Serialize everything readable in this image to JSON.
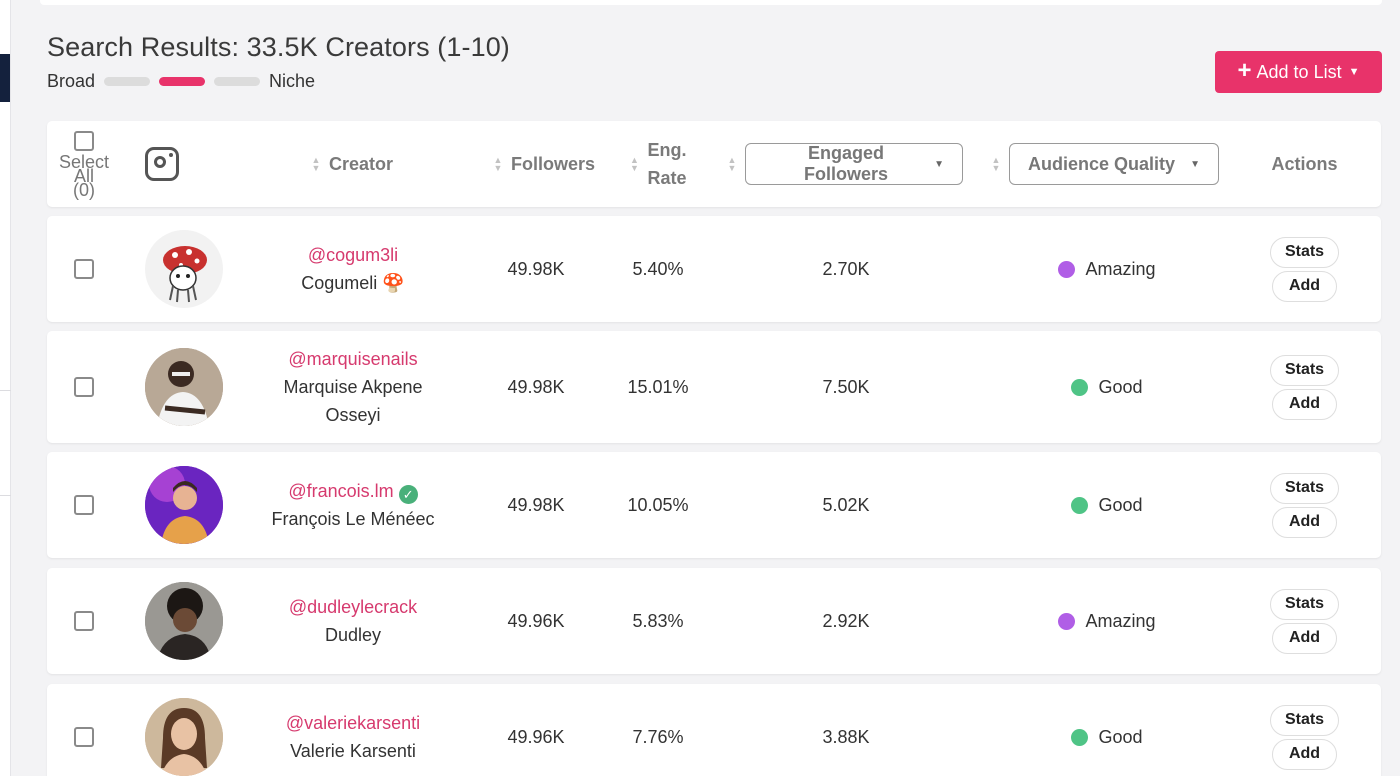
{
  "header": {
    "title": "Search Results: 33.5K Creators (1-10)",
    "scale_left": "Broad",
    "scale_right": "Niche",
    "add_to_list_label": "Add to List"
  },
  "table": {
    "select_all_label": "Select All",
    "select_all_count": "(0)",
    "columns": {
      "creator": "Creator",
      "followers": "Followers",
      "eng_rate_line1": "Eng.",
      "eng_rate_line2": "Rate",
      "engaged_followers": "Engaged Followers",
      "audience_quality": "Audience Quality",
      "actions": "Actions"
    },
    "rows": [
      {
        "handle": "@cogum3li",
        "name": "Cogumeli 🍄",
        "followers": "49.98K",
        "eng_rate": "5.40%",
        "engaged": "2.70K",
        "quality": "Amazing",
        "quality_color": "#b05ee6",
        "verified": false
      },
      {
        "handle": "@marquisenails",
        "name": "Marquise Akpene Osseyi",
        "followers": "49.98K",
        "eng_rate": "15.01%",
        "engaged": "7.50K",
        "quality": "Good",
        "quality_color": "#4fc486",
        "verified": false
      },
      {
        "handle": "@francois.lm",
        "name": "François Le Ménéec",
        "followers": "49.98K",
        "eng_rate": "10.05%",
        "engaged": "5.02K",
        "quality": "Good",
        "quality_color": "#4fc486",
        "verified": true
      },
      {
        "handle": "@dudleylecrack",
        "name": "Dudley",
        "followers": "49.96K",
        "eng_rate": "5.83%",
        "engaged": "2.92K",
        "quality": "Amazing",
        "quality_color": "#b05ee6",
        "verified": false
      },
      {
        "handle": "@valeriekarsenti",
        "name": "Valerie Karsenti",
        "followers": "49.96K",
        "eng_rate": "7.76%",
        "engaged": "3.88K",
        "quality": "Good",
        "quality_color": "#4fc486",
        "verified": false
      }
    ],
    "stats_label": "Stats",
    "add_label": "Add"
  },
  "colors": {
    "accent": "#e8336a",
    "handle": "#d63a6e",
    "amazing": "#b05ee6",
    "good": "#4fc486"
  }
}
